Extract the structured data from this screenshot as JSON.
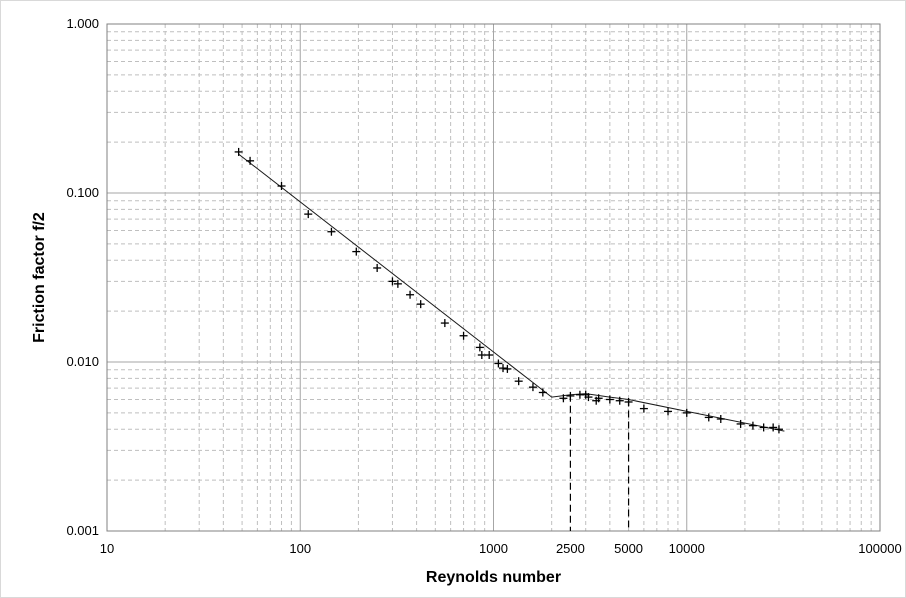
{
  "chart_data": {
    "type": "scatter",
    "title": "",
    "xlabel": "Reynolds number",
    "ylabel": "Friction factor f/2",
    "xscale": "log",
    "yscale": "log",
    "xlim": [
      10,
      100000
    ],
    "ylim": [
      0.001,
      1.0
    ],
    "grid": true,
    "legend": "none",
    "x_tick_labels": [
      "10",
      "100",
      "1000",
      "10000",
      "100000"
    ],
    "y_tick_labels": [
      "0.001",
      "0.010",
      "0.100",
      "1.000"
    ],
    "annotation_labels": [
      "2500",
      "5000"
    ],
    "annotation_x": [
      2500,
      5000
    ],
    "series": [
      {
        "marker": "plus",
        "x": [
          48,
          55,
          80,
          110,
          145,
          195,
          250,
          300,
          320,
          370,
          420,
          560,
          700,
          850,
          870,
          950,
          1060,
          1120,
          1180,
          1350,
          1600,
          1800,
          2300,
          2500,
          2800,
          3000,
          3100,
          3400,
          3500,
          4000,
          4500,
          5000,
          6000,
          8000,
          10000,
          13000,
          15000,
          19000,
          22000,
          25000,
          28000,
          30000
        ],
        "y": [
          0.175,
          0.155,
          0.11,
          0.075,
          0.059,
          0.045,
          0.036,
          0.03,
          0.029,
          0.025,
          0.022,
          0.017,
          0.0143,
          0.0122,
          0.011,
          0.011,
          0.0098,
          0.0092,
          0.0091,
          0.0077,
          0.0071,
          0.0066,
          0.0061,
          0.0063,
          0.0064,
          0.0064,
          0.0062,
          0.0059,
          0.0061,
          0.006,
          0.0059,
          0.0058,
          0.0053,
          0.0051,
          0.005,
          0.0047,
          0.0046,
          0.0043,
          0.0042,
          0.0041,
          0.0041,
          0.004
        ]
      },
      {
        "marker": "none",
        "line": "solid",
        "x": [
          48,
          2000,
          2500,
          3000,
          4000,
          5000,
          10000,
          32000
        ],
        "y": [
          0.17,
          0.0062,
          0.0064,
          0.0065,
          0.0062,
          0.006,
          0.0051,
          0.0039
        ]
      }
    ],
    "colors": {
      "grid_major": "#a6a6a6",
      "grid_minor": "#bfbfbf",
      "data": "#000000",
      "frame": "#d9d9d9"
    }
  }
}
